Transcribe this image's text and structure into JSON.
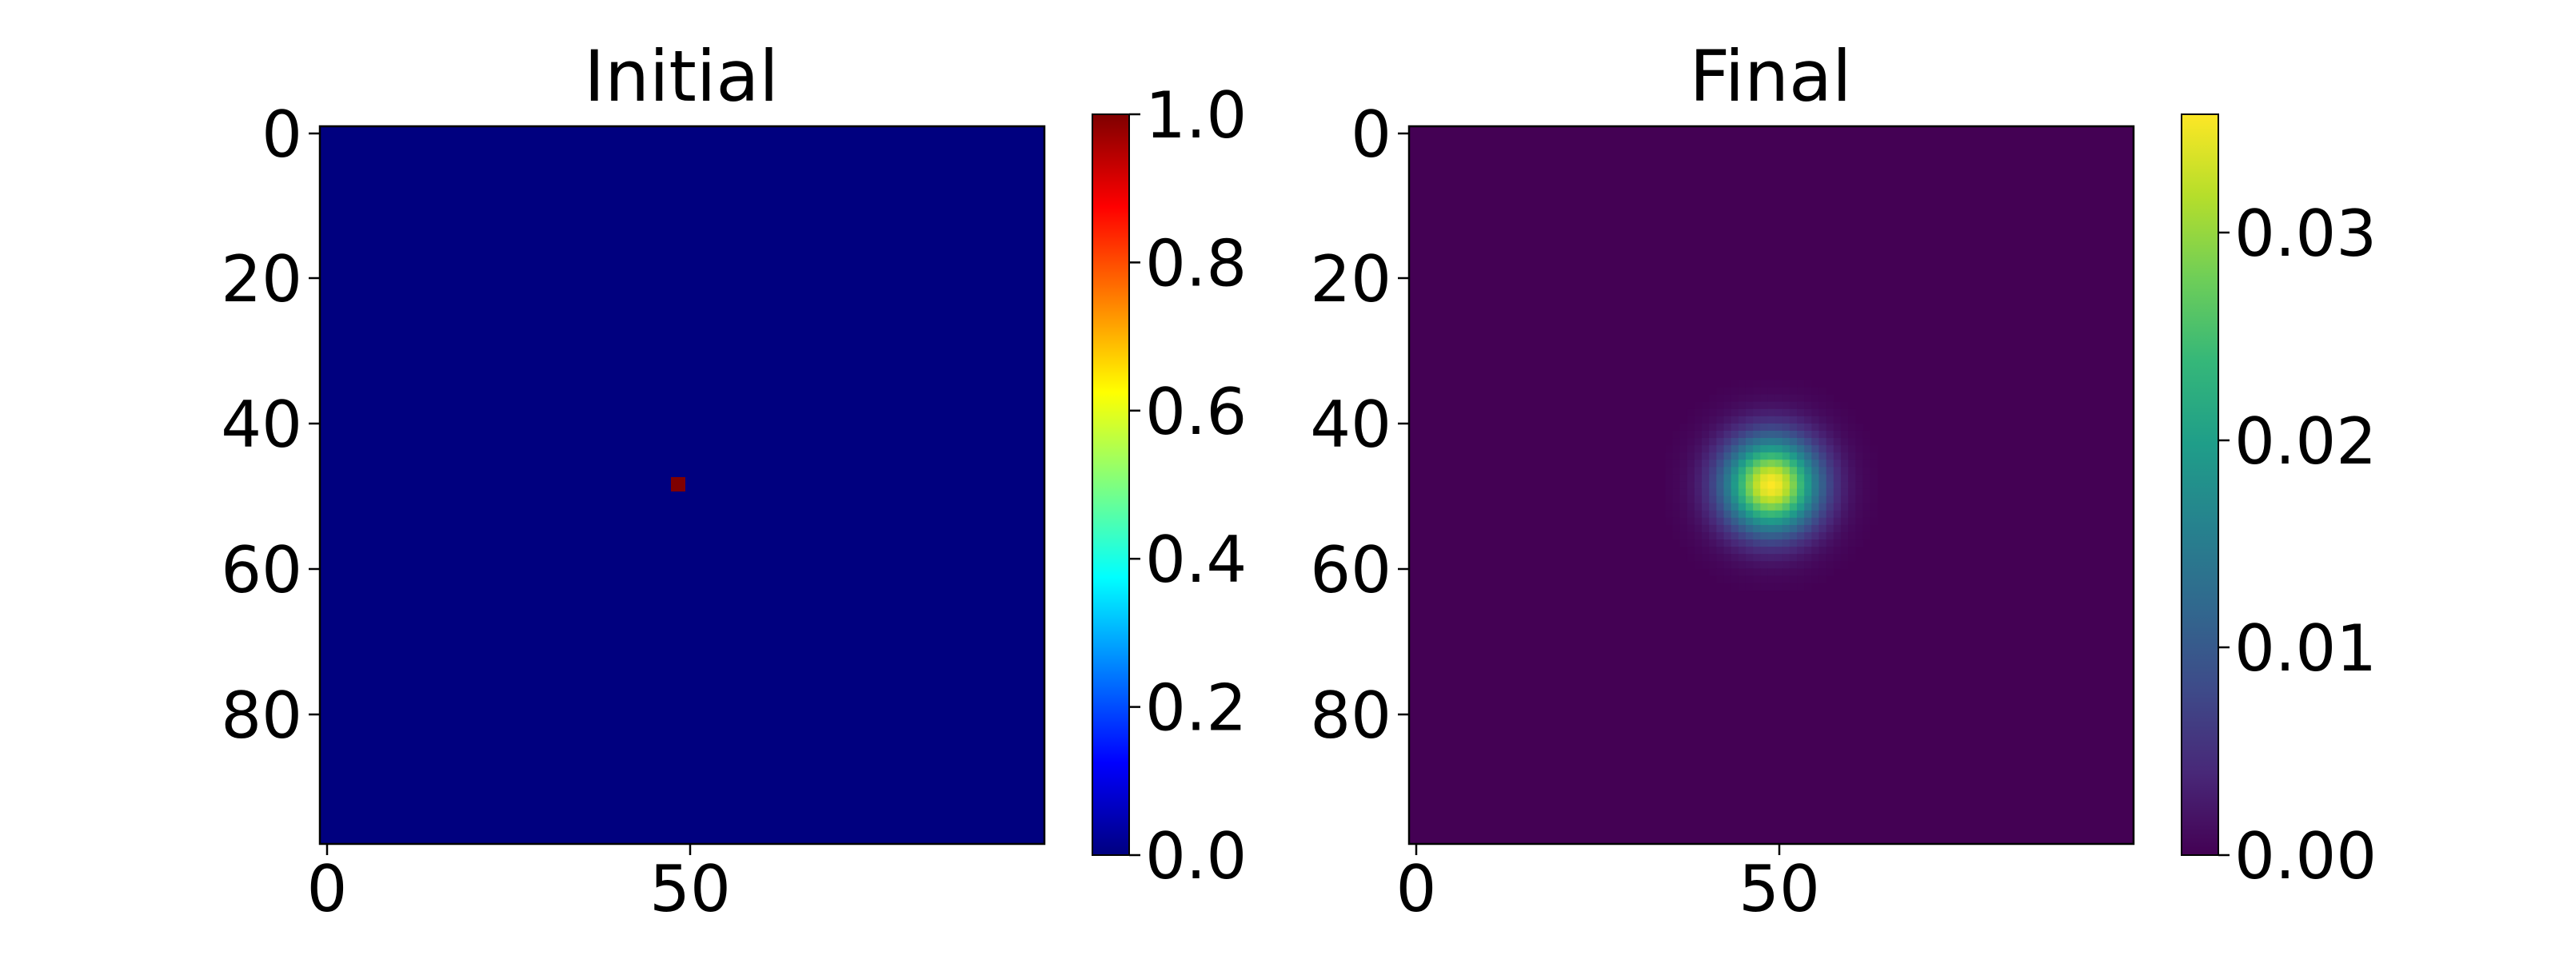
{
  "chart_data": [
    {
      "type": "heatmap",
      "title": "Initial",
      "colormap": "jet",
      "grid": false,
      "grid_size": [
        99,
        99
      ],
      "xlim": [
        0,
        98
      ],
      "ylim": [
        98,
        0
      ],
      "xticks": [
        0,
        50
      ],
      "yticks": [
        0,
        20,
        40,
        60,
        80
      ],
      "x_tick_labels": [
        "0",
        "50"
      ],
      "y_tick_labels": [
        "0",
        "20",
        "40",
        "60",
        "80"
      ],
      "field": {
        "kind": "delta",
        "center": [
          49,
          49
        ],
        "peak": 1.0,
        "background": 0.0
      },
      "colorbar": {
        "range": [
          0.0,
          1.0
        ],
        "ticks": [
          0.0,
          0.2,
          0.4,
          0.6,
          0.8,
          1.0
        ],
        "tick_labels": [
          "0.0",
          "0.2",
          "0.4",
          "0.6",
          "0.8",
          "1.0"
        ],
        "stops": [
          "#00007f",
          "#0000ff",
          "#007fff",
          "#00ffff",
          "#7fff7f",
          "#ffff00",
          "#ff7f00",
          "#ff0000",
          "#7f0000"
        ]
      }
    },
    {
      "type": "heatmap",
      "title": "Final",
      "colormap": "viridis",
      "grid": false,
      "grid_size": [
        99,
        99
      ],
      "xlim": [
        0,
        98
      ],
      "ylim": [
        98,
        0
      ],
      "xticks": [
        0,
        50
      ],
      "yticks": [
        0,
        20,
        40,
        60,
        80
      ],
      "x_tick_labels": [
        "0",
        "50"
      ],
      "y_tick_labels": [
        "0",
        "20",
        "40",
        "60",
        "80"
      ],
      "field": {
        "kind": "gaussian",
        "center": [
          49,
          49
        ],
        "peak": 0.0357,
        "sigma": 4.5,
        "background": 0.0
      },
      "colorbar": {
        "range": [
          0.0,
          0.0357
        ],
        "ticks": [
          0.0,
          0.01,
          0.02,
          0.03
        ],
        "tick_labels": [
          "0.00",
          "0.01",
          "0.02",
          "0.03"
        ],
        "stops": [
          "#440154",
          "#482878",
          "#3e4a89",
          "#31688e",
          "#26828e",
          "#1f9e89",
          "#35b779",
          "#6ece58",
          "#b5de2b",
          "#fde725"
        ]
      }
    }
  ]
}
